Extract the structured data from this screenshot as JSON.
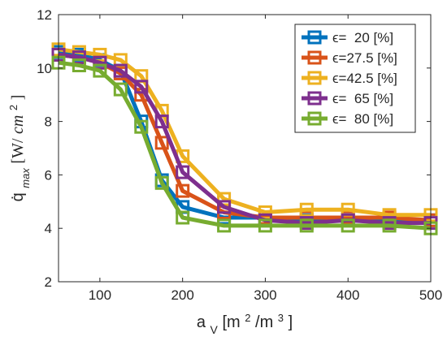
{
  "chart_data": {
    "type": "line",
    "title": "",
    "xlabel": "a_V [m²/m³]",
    "xlabel_parts": {
      "base": "a",
      "sub": "V",
      "unit_open": " [m",
      "sup1": "2",
      "unit_mid": "/m",
      "sup2": "3",
      "unit_close": "]"
    },
    "ylabel": "q̇_max [W/cm²]",
    "ylabel_parts": {
      "base": "q̇",
      "sub": "max",
      "unit_open": " [W/",
      "unit_cm": "cm",
      "sup": "2",
      "unit_close": "]"
    },
    "xlim": [
      50,
      500
    ],
    "ylim": [
      2,
      12
    ],
    "xticks": [
      100,
      200,
      300,
      400,
      500
    ],
    "yticks": [
      2,
      4,
      6,
      8,
      10,
      12
    ],
    "grid": false,
    "legend_position": "top-right",
    "marker": "square",
    "x": [
      50,
      75,
      100,
      125,
      150,
      175,
      200,
      250,
      300,
      350,
      400,
      450,
      500
    ],
    "series": [
      {
        "name": "ϵ=  20 [%]",
        "color": "#0072bd",
        "values": [
          10.6,
          10.5,
          10.3,
          9.9,
          8.0,
          5.8,
          4.8,
          4.4,
          4.4,
          4.3,
          4.3,
          4.3,
          4.3
        ]
      },
      {
        "name": "ϵ=27.5 [%]",
        "color": "#d95319",
        "values": [
          10.5,
          10.4,
          10.2,
          9.8,
          9.0,
          7.2,
          5.4,
          4.6,
          4.4,
          4.4,
          4.4,
          4.4,
          4.3
        ]
      },
      {
        "name": "ϵ=42.5 [%]",
        "color": "#edb120",
        "values": [
          10.7,
          10.6,
          10.5,
          10.3,
          9.7,
          8.4,
          6.7,
          5.1,
          4.6,
          4.7,
          4.7,
          4.5,
          4.5
        ]
      },
      {
        "name": "ϵ=  65 [%]",
        "color": "#7e2f8e",
        "values": [
          10.5,
          10.4,
          10.2,
          9.9,
          9.3,
          8.0,
          6.1,
          4.8,
          4.3,
          4.2,
          4.3,
          4.2,
          4.2
        ]
      },
      {
        "name": "ϵ=  80 [%]",
        "color": "#77ac30",
        "values": [
          10.2,
          10.1,
          9.9,
          9.2,
          7.8,
          5.7,
          4.4,
          4.1,
          4.1,
          4.1,
          4.1,
          4.1,
          4.0
        ]
      }
    ]
  }
}
